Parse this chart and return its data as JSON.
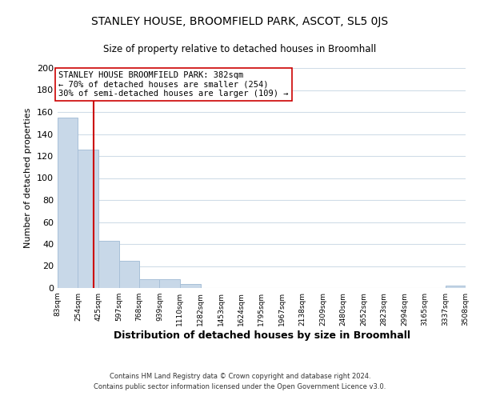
{
  "title": "STANLEY HOUSE, BROOMFIELD PARK, ASCOT, SL5 0JS",
  "subtitle": "Size of property relative to detached houses in Broomhall",
  "xlabel": "Distribution of detached houses by size in Broomhall",
  "ylabel": "Number of detached properties",
  "bar_edges": [
    83,
    254,
    425,
    597,
    768,
    939,
    1110,
    1282,
    1453,
    1624,
    1795,
    1967,
    2138,
    2309,
    2480,
    2652,
    2823,
    2994,
    3165,
    3337,
    3508
  ],
  "bar_heights": [
    155,
    126,
    43,
    25,
    8,
    8,
    4,
    0,
    0,
    0,
    0,
    0,
    0,
    0,
    0,
    0,
    0,
    0,
    0,
    2
  ],
  "bar_color": "#c8d8e8",
  "bar_edgecolor": "#a8c0d8",
  "vline_x": 382,
  "vline_color": "#cc0000",
  "ylim": [
    0,
    200
  ],
  "yticks": [
    0,
    20,
    40,
    60,
    80,
    100,
    120,
    140,
    160,
    180,
    200
  ],
  "annotation_text": "STANLEY HOUSE BROOMFIELD PARK: 382sqm\n← 70% of detached houses are smaller (254)\n30% of semi-detached houses are larger (109) →",
  "annotation_box_color": "#ffffff",
  "annotation_box_edgecolor": "#cc0000",
  "footer_line1": "Contains HM Land Registry data © Crown copyright and database right 2024.",
  "footer_line2": "Contains public sector information licensed under the Open Government Licence v3.0.",
  "background_color": "#ffffff",
  "grid_color": "#d0dce8",
  "tick_labels": [
    "83sqm",
    "254sqm",
    "425sqm",
    "597sqm",
    "768sqm",
    "939sqm",
    "1110sqm",
    "1282sqm",
    "1453sqm",
    "1624sqm",
    "1795sqm",
    "1967sqm",
    "2138sqm",
    "2309sqm",
    "2480sqm",
    "2652sqm",
    "2823sqm",
    "2994sqm",
    "3165sqm",
    "3337sqm",
    "3508sqm"
  ]
}
